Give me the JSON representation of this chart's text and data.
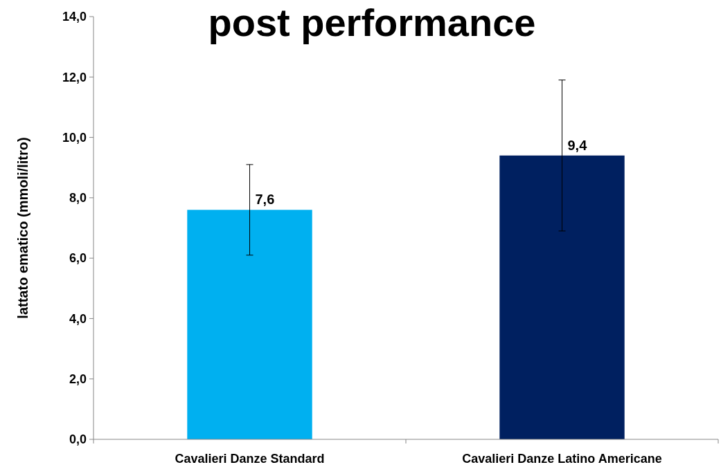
{
  "chart_data": {
    "type": "bar",
    "title": "post performance",
    "ylabel": "lattato ematico (mmoli/litro)",
    "categories": [
      "Cavalieri Danze Standard",
      "Cavalieri Danze Latino Americane"
    ],
    "values": [
      7.6,
      9.4
    ],
    "colors": [
      "#00b0f0",
      "#002060"
    ],
    "errors": [
      1.5,
      2.5
    ],
    "value_labels": [
      "7,6",
      "9,4"
    ],
    "ylim": [
      0,
      14
    ],
    "yticks": [
      {
        "value": 0,
        "label": "0,0"
      },
      {
        "value": 2,
        "label": "2,0"
      },
      {
        "value": 4,
        "label": "4,0"
      },
      {
        "value": 6,
        "label": "6,0"
      },
      {
        "value": 8,
        "label": "8,0"
      },
      {
        "value": 10,
        "label": "10,0"
      },
      {
        "value": 12,
        "label": "12,0"
      },
      {
        "value": 14,
        "label": "14,0"
      }
    ],
    "grid": false
  }
}
